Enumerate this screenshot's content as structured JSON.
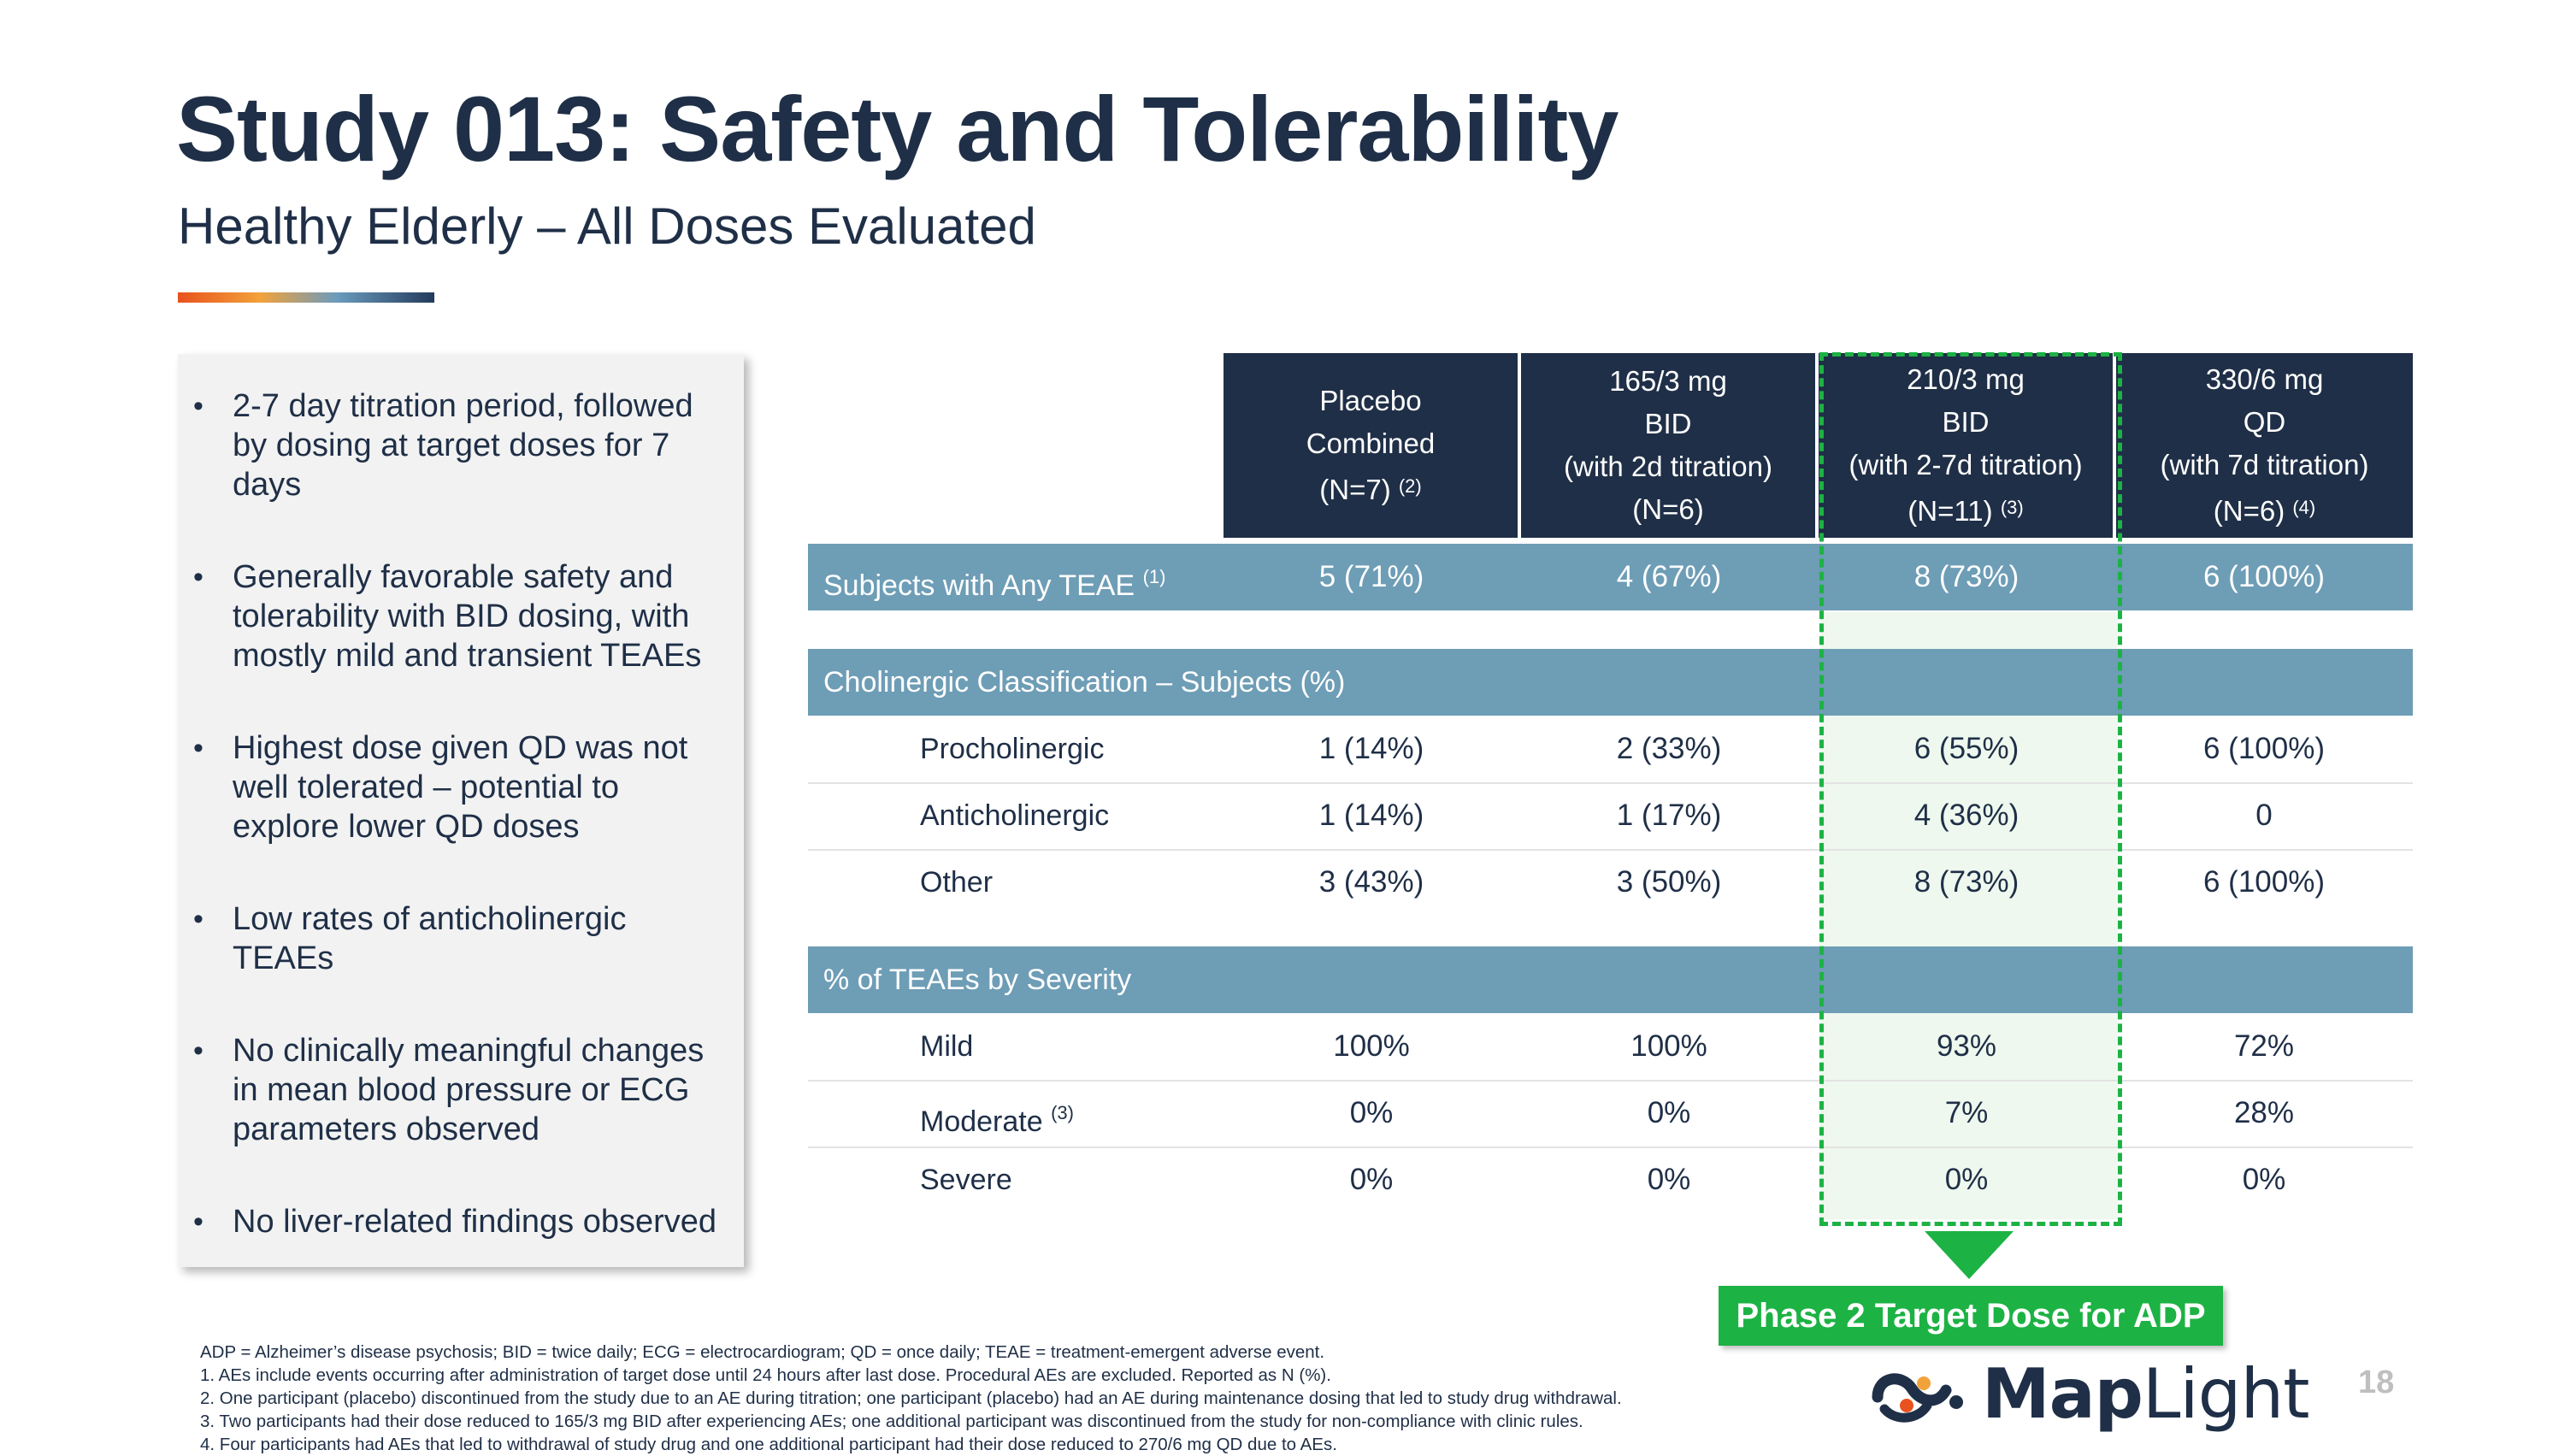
{
  "slide": {
    "title": "Study 013: Safety and Tolerability",
    "subtitle": "Healthy Elderly – All Doses Evaluated",
    "page_number": "18"
  },
  "bullets": [
    "2-7 day titration period, followed by dosing at target doses for 7 days",
    "Generally favorable safety and tolerability with BID dosing, with mostly mild and transient TEAEs",
    "Highest dose given QD was not well tolerated – potential to explore lower QD doses",
    "Low rates of anticholinergic TEAEs",
    "No clinically meaningful changes in mean blood pressure or ECG parameters observed",
    "No liver-related findings observed"
  ],
  "table": {
    "columns": [
      {
        "line1": "Placebo",
        "line2": "Combined",
        "line3": "",
        "line4": "(N=7)",
        "note": "(2)"
      },
      {
        "line1": "165/3 mg",
        "line2": "BID",
        "line3": "(with 2d titration)",
        "line4": "(N=6)",
        "note": ""
      },
      {
        "line1": "210/3 mg",
        "line2": "BID",
        "line3": "(with 2-7d titration)",
        "line4": "(N=11)",
        "note": "(3)"
      },
      {
        "line1": "330/6 mg",
        "line2": "QD",
        "line3": "(with 7d titration)",
        "line4": "(N=6)",
        "note": "(4)"
      }
    ],
    "any_teae": {
      "label": "Subjects with Any TEAE",
      "note": "(1)",
      "values": [
        "5 (71%)",
        "4 (67%)",
        "8 (73%)",
        "6 (100%)"
      ]
    },
    "cholinergic": {
      "header": "Cholinergic Classification – Subjects (%)",
      "rows": [
        {
          "label": "Procholinergic",
          "note": "",
          "values": [
            "1 (14%)",
            "2 (33%)",
            "6 (55%)",
            "6 (100%)"
          ]
        },
        {
          "label": "Anticholinergic",
          "note": "",
          "values": [
            "1 (14%)",
            "1 (17%)",
            "4 (36%)",
            "0"
          ]
        },
        {
          "label": "Other",
          "note": "",
          "values": [
            "3 (43%)",
            "3 (50%)",
            "8 (73%)",
            "6 (100%)"
          ]
        }
      ]
    },
    "severity": {
      "header": "% of TEAEs by Severity",
      "rows": [
        {
          "label": "Mild",
          "note": "",
          "values": [
            "100%",
            "100%",
            "93%",
            "72%"
          ]
        },
        {
          "label": "Moderate",
          "note": "(3)",
          "values": [
            "0%",
            "0%",
            "7%",
            "28%"
          ]
        },
        {
          "label": "Severe",
          "note": "",
          "values": [
            "0%",
            "0%",
            "0%",
            "0%"
          ]
        }
      ]
    }
  },
  "callout": {
    "label": "Phase 2 Target Dose for ADP",
    "color": "#1db244"
  },
  "footnotes": [
    "ADP = Alzheimer’s disease psychosis; BID = twice daily; ECG = electrocardiogram; QD = once daily; TEAE = treatment-emergent adverse event.",
    "1.  AEs include events occurring after administration of target dose until 24 hours after last dose. Procedural AEs are excluded. Reported as N (%).",
    "2.  One participant (placebo) discontinued from the study due to an AE during titration;  one participant  (placebo) had an AE during maintenance dosing that led to study drug withdrawal.",
    "3.  Two participants had their dose reduced to 165/3 mg BID after experiencing AEs; one additional participant was discontinued from the study for non-compliance with clinic rules.",
    "4.  Four participants had AEs that led to withdrawal of study drug and one additional participant had their dose reduced to 270/6 mg QD due to AEs."
  ],
  "logo": {
    "text_bold": "Map",
    "text_light": "Light"
  },
  "colors": {
    "navy": "#1f2f47",
    "section_blue": "#6e9db6",
    "green": "#1db244"
  }
}
